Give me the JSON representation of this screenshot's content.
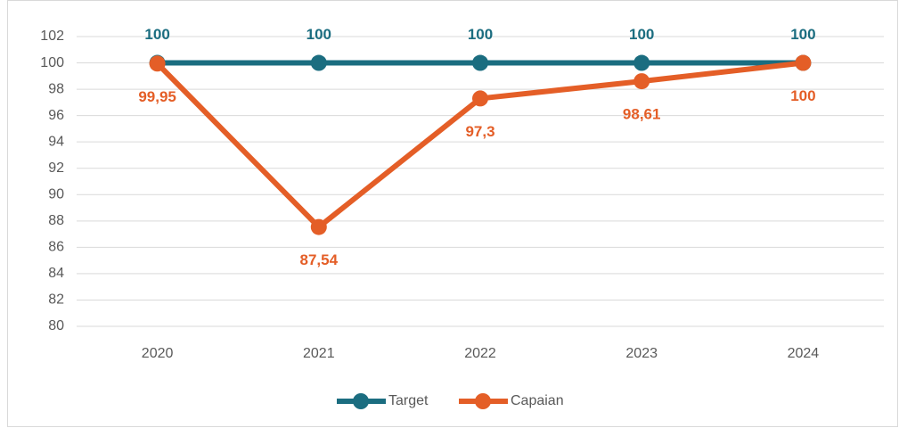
{
  "chart_data": {
    "type": "line",
    "categories": [
      "2020",
      "2021",
      "2022",
      "2023",
      "2024"
    ],
    "series": [
      {
        "name": "Target",
        "color": "#1b6d80",
        "values": [
          100,
          100,
          100,
          100,
          100
        ]
      },
      {
        "name": "Capaian",
        "color": "#e45e27",
        "values": [
          99.95,
          87.54,
          97.3,
          98.61,
          100
        ],
        "value_labels": [
          "99,95",
          "87,54",
          "97,3",
          "98,61",
          "100"
        ]
      }
    ],
    "ylim": [
      80,
      102
    ],
    "yticks": [
      80,
      82,
      84,
      86,
      88,
      90,
      92,
      94,
      96,
      98,
      100,
      102
    ],
    "grid": true,
    "legend": "bottom"
  }
}
